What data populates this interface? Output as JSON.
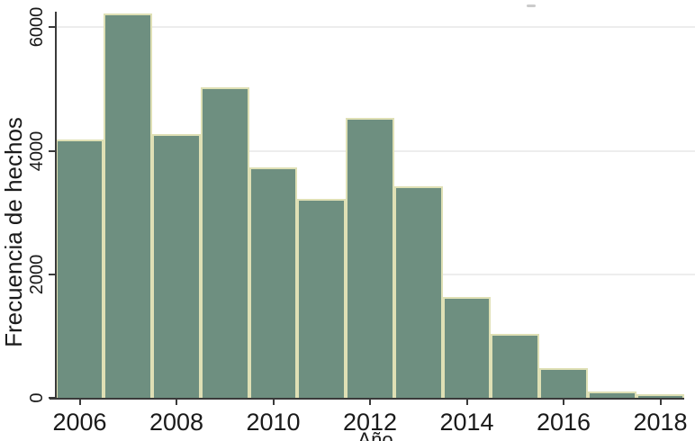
{
  "chart_data": {
    "type": "bar",
    "title": "",
    "xlabel": "Año",
    "ylabel": "Frecuencia de hechos",
    "categories": [
      2006,
      2007,
      2008,
      2009,
      2010,
      2011,
      2012,
      2013,
      2014,
      2015,
      2016,
      2017,
      2018
    ],
    "values": [
      4150,
      6200,
      4250,
      5000,
      3700,
      3200,
      4500,
      3400,
      1600,
      1000,
      450,
      80,
      25
    ],
    "xticks": [
      2006,
      2008,
      2010,
      2012,
      2014,
      2016,
      2018
    ],
    "yticks": [
      0,
      2000,
      4000,
      6000
    ],
    "xlim": [
      2005.5,
      2018.5
    ],
    "ylim": [
      0,
      6300
    ],
    "grid": "horizontal-only",
    "legend": "none",
    "colors": {
      "bar_fill": "#6e8f80",
      "bar_border": "#dfe0b5",
      "gridline": "#ededed",
      "axis": "#3a3a3a",
      "text": "#1a1a1a",
      "background": "#ffffff"
    }
  }
}
